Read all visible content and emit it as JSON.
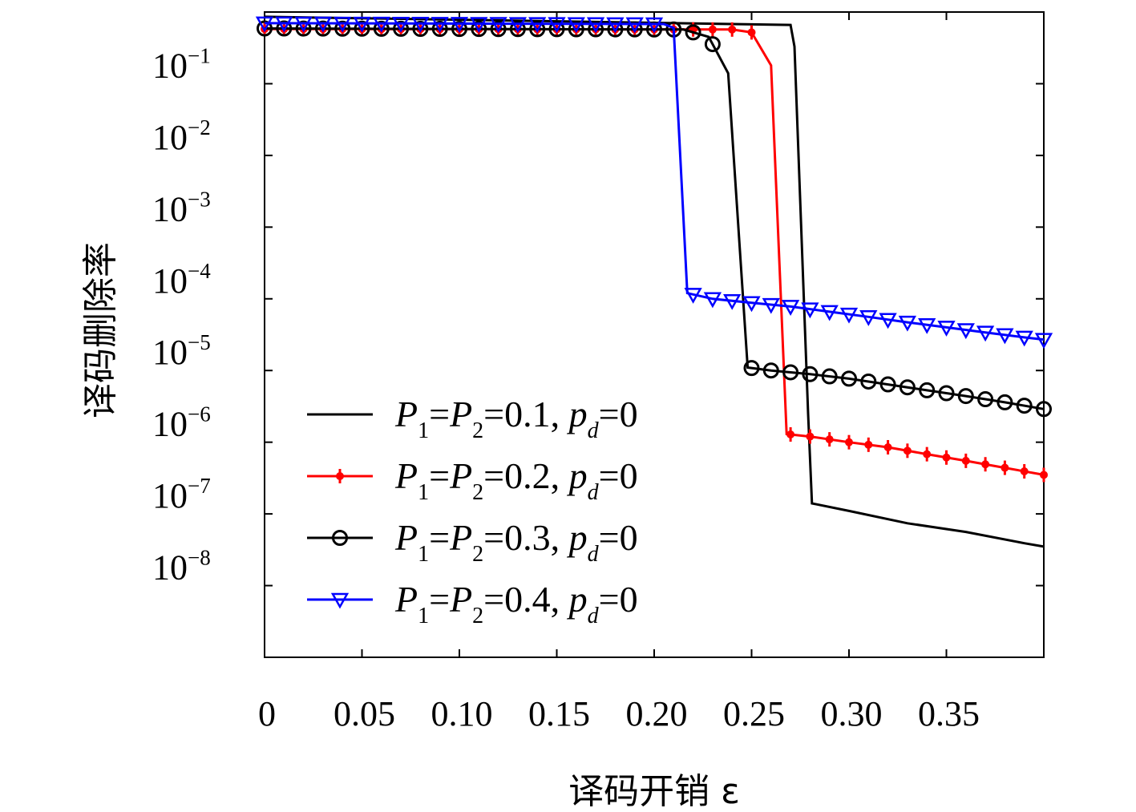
{
  "chart_data": {
    "type": "line",
    "xlabel": "译码开销 ε",
    "ylabel": "译码删除率",
    "y_scale": "log",
    "xlim": [
      0,
      0.4
    ],
    "ylim_exponent": [
      -9.0,
      0.0
    ],
    "x_tick_labels": [
      "0",
      "0.05",
      "0.10",
      "0.15",
      "0.20",
      "0.25",
      "0.30",
      "0.35"
    ],
    "x_tick_values": [
      0,
      0.05,
      0.1,
      0.15,
      0.2,
      0.25,
      0.3,
      0.35
    ],
    "y_ticks": [
      {
        "base": "10",
        "exp": "−1",
        "value": 0.1
      },
      {
        "base": "10",
        "exp": "−2",
        "value": 0.01
      },
      {
        "base": "10",
        "exp": "−3",
        "value": 0.001
      },
      {
        "base": "10",
        "exp": "−4",
        "value": 0.0001
      },
      {
        "base": "10",
        "exp": "−5",
        "value": 1e-05
      },
      {
        "base": "10",
        "exp": "−6",
        "value": 1e-06
      },
      {
        "base": "10",
        "exp": "−7",
        "value": 1e-07
      },
      {
        "base": "10",
        "exp": "−8",
        "value": 1e-08
      }
    ],
    "legend_position": "lower-left",
    "series": [
      {
        "legend": {
          "a": "P",
          "a_sub": "1",
          "eq1": "=",
          "b": "P",
          "b_sub": "2",
          "eq2": "=0.1, ",
          "c": "p",
          "c_sub": "d",
          "eq3": "=0"
        },
        "color": "#000000",
        "marker": "none",
        "points": [
          [
            0,
            0.86
          ],
          [
            0.27,
            0.66
          ],
          [
            0.272,
            0.33
          ],
          [
            0.279,
            2.5e-06
          ],
          [
            0.281,
            1.4e-07
          ],
          [
            0.3,
            1.1e-07
          ],
          [
            0.33,
            7.4e-08
          ],
          [
            0.36,
            5.6e-08
          ],
          [
            0.39,
            3.9e-08
          ],
          [
            0.4,
            3.5e-08
          ]
        ]
      },
      {
        "legend": {
          "a": "P",
          "a_sub": "1",
          "eq1": "=",
          "b": "P",
          "b_sub": "2",
          "eq2": "=0.2, ",
          "c": "p",
          "c_sub": "d",
          "eq3": "=0"
        },
        "color": "#ff0000",
        "marker": "plus",
        "points": [
          [
            0,
            0.58
          ],
          [
            0.24,
            0.57
          ],
          [
            0.25,
            0.52
          ],
          [
            0.26,
            0.18
          ],
          [
            0.268,
            1.3e-06
          ],
          [
            0.28,
            1.2e-06
          ],
          [
            0.3,
            1e-06
          ],
          [
            0.32,
            8.5e-07
          ],
          [
            0.34,
            6.8e-07
          ],
          [
            0.36,
            5.5e-07
          ],
          [
            0.38,
            4.4e-07
          ],
          [
            0.4,
            3.5e-07
          ]
        ]
      },
      {
        "legend": {
          "a": "P",
          "a_sub": "1",
          "eq1": "=",
          "b": "P",
          "b_sub": "2",
          "eq2": "=0.3, ",
          "c": "p",
          "c_sub": "d",
          "eq3": "=0"
        },
        "color": "#000000",
        "marker": "circle",
        "points": [
          [
            0,
            0.59
          ],
          [
            0.215,
            0.57
          ],
          [
            0.228,
            0.45
          ],
          [
            0.238,
            0.14
          ],
          [
            0.248,
            1.1e-05
          ],
          [
            0.26,
            1e-05
          ],
          [
            0.28,
            8.9e-06
          ],
          [
            0.3,
            7.7e-06
          ],
          [
            0.32,
            6.4e-06
          ],
          [
            0.34,
            5.3e-06
          ],
          [
            0.36,
            4.4e-06
          ],
          [
            0.38,
            3.6e-06
          ],
          [
            0.4,
            2.9e-06
          ]
        ]
      },
      {
        "legend": {
          "a": "P",
          "a_sub": "1",
          "eq1": "=",
          "b": "P",
          "b_sub": "2",
          "eq2": "=0.4, ",
          "c": "p",
          "c_sub": "d",
          "eq3": "=0"
        },
        "color": "#0000ff",
        "marker": "triangle-down",
        "points": [
          [
            0,
            0.7
          ],
          [
            0.205,
            0.68
          ],
          [
            0.21,
            0.6
          ],
          [
            0.217,
            0.00012
          ],
          [
            0.23,
            0.0001
          ],
          [
            0.25,
            8.8e-05
          ],
          [
            0.27,
            7.8e-05
          ],
          [
            0.29,
            6.6e-05
          ],
          [
            0.31,
            5.6e-05
          ],
          [
            0.33,
            4.7e-05
          ],
          [
            0.35,
            4e-05
          ],
          [
            0.37,
            3.4e-05
          ],
          [
            0.39,
            2.9e-05
          ],
          [
            0.4,
            2.7e-05
          ]
        ]
      }
    ]
  }
}
